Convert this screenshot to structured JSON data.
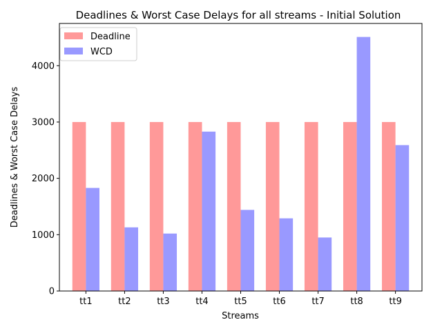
{
  "chart_data": {
    "type": "bar",
    "title": "Deadlines & Worst Case Delays for all streams - Initial Solution",
    "xlabel": "Streams",
    "ylabel": "Deadlines & Worst Case Delays",
    "categories": [
      "tt1",
      "tt2",
      "tt3",
      "tt4",
      "tt5",
      "tt6",
      "tt7",
      "tt8",
      "tt9"
    ],
    "series": [
      {
        "name": "Deadline",
        "color": "#ff9999",
        "values": [
          3000,
          3000,
          3000,
          3000,
          3000,
          3000,
          3000,
          3000,
          3000
        ]
      },
      {
        "name": "WCD",
        "color": "#9999ff",
        "values": [
          1830,
          1130,
          1020,
          2830,
          1440,
          1290,
          950,
          4510,
          2590
        ]
      }
    ],
    "ylim": [
      0,
      4750
    ],
    "yticks": [
      0,
      1000,
      2000,
      3000,
      4000
    ],
    "legend": "top-left",
    "grid": false
  }
}
